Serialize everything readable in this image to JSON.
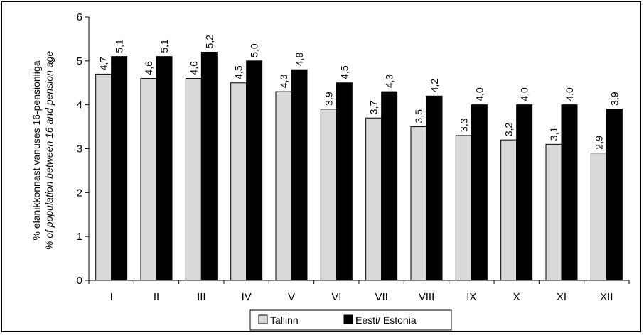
{
  "chart_data": {
    "type": "bar",
    "categories": [
      "I",
      "II",
      "III",
      "IV",
      "V",
      "VI",
      "VII",
      "VIII",
      "IX",
      "X",
      "XI",
      "XII"
    ],
    "series": [
      {
        "name": "Tallinn",
        "color": "#d9d9d9",
        "values": [
          4.7,
          4.6,
          4.6,
          4.5,
          4.3,
          3.9,
          3.7,
          3.5,
          3.3,
          3.2,
          3.1,
          2.9
        ],
        "labels": [
          "4,7",
          "4,6",
          "4,6",
          "4,5",
          "4,3",
          "3,9",
          "3,7",
          "3,5",
          "3,3",
          "3,2",
          "3,1",
          "2,9"
        ]
      },
      {
        "name": "Eesti/ Estonia",
        "color": "#000000",
        "values": [
          5.1,
          5.1,
          5.2,
          5.0,
          4.8,
          4.5,
          4.3,
          4.2,
          4.0,
          4.0,
          4.0,
          3.9
        ],
        "labels": [
          "5,1",
          "5,1",
          "5,2",
          "5,0",
          "4,8",
          "4,5",
          "4,3",
          "4,2",
          "4,0",
          "4,0",
          "4,0",
          "3,9"
        ]
      }
    ],
    "ylabel_line1": "% elanikkonnast vanuses 16-pensioniiga",
    "ylabel_line2": "% of population between 16 and pension age",
    "ylim": [
      0,
      6
    ],
    "yticks": [
      "0",
      "1",
      "2",
      "3",
      "4",
      "5",
      "6"
    ],
    "grid": false,
    "legend_position": "bottom"
  }
}
